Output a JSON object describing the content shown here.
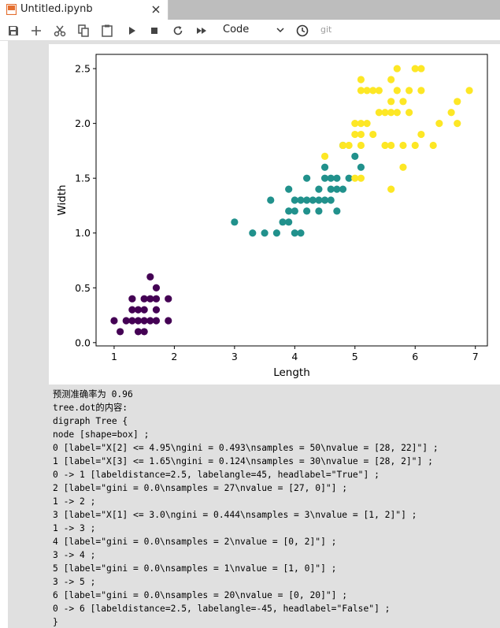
{
  "tab": {
    "title": "Untitled.ipynb",
    "icon": "notebook-icon",
    "close_icon": "close-icon"
  },
  "toolbar": {
    "buttons": [
      "save-icon",
      "add-cell-icon",
      "cut-icon",
      "copy-icon",
      "paste-icon",
      "run-icon",
      "stop-icon",
      "restart-icon",
      "fast-forward-icon"
    ],
    "cell_type": "Code",
    "clock_icon": "clock-icon",
    "git_label": "git"
  },
  "colors": {
    "class0": "#440154",
    "class1": "#21918c",
    "class2": "#fde725",
    "tab_bar": "#bdbdbd",
    "cell_area": "#e0e0e0"
  },
  "chart_data": {
    "type": "scatter",
    "xlabel": "Length",
    "ylabel": "Width",
    "xlim": [
      0.7,
      7.2
    ],
    "ylim": [
      -0.03,
      2.63
    ],
    "xticks": [
      "1",
      "2",
      "3",
      "4",
      "5",
      "6",
      "7"
    ],
    "yticks": [
      "0.0",
      "0.5",
      "1.0",
      "1.5",
      "2.0",
      "2.5"
    ],
    "grid": false,
    "legend": "none",
    "series": [
      {
        "color": "#440154",
        "points": [
          [
            1.0,
            0.2
          ],
          [
            1.1,
            0.1
          ],
          [
            1.2,
            0.2
          ],
          [
            1.3,
            0.2
          ],
          [
            1.3,
            0.3
          ],
          [
            1.3,
            0.4
          ],
          [
            1.4,
            0.1
          ],
          [
            1.4,
            0.2
          ],
          [
            1.4,
            0.3
          ],
          [
            1.5,
            0.1
          ],
          [
            1.5,
            0.2
          ],
          [
            1.5,
            0.3
          ],
          [
            1.5,
            0.4
          ],
          [
            1.6,
            0.2
          ],
          [
            1.6,
            0.4
          ],
          [
            1.6,
            0.6
          ],
          [
            1.7,
            0.2
          ],
          [
            1.7,
            0.3
          ],
          [
            1.7,
            0.4
          ],
          [
            1.7,
            0.5
          ],
          [
            1.9,
            0.2
          ],
          [
            1.9,
            0.4
          ]
        ]
      },
      {
        "color": "#21918c",
        "points": [
          [
            3.0,
            1.1
          ],
          [
            3.3,
            1.0
          ],
          [
            3.5,
            1.0
          ],
          [
            3.6,
            1.3
          ],
          [
            3.7,
            1.0
          ],
          [
            3.8,
            1.1
          ],
          [
            3.9,
            1.1
          ],
          [
            3.9,
            1.2
          ],
          [
            3.9,
            1.4
          ],
          [
            4.0,
            1.0
          ],
          [
            4.0,
            1.2
          ],
          [
            4.0,
            1.3
          ],
          [
            4.1,
            1.0
          ],
          [
            4.1,
            1.3
          ],
          [
            4.2,
            1.2
          ],
          [
            4.2,
            1.3
          ],
          [
            4.2,
            1.5
          ],
          [
            4.3,
            1.3
          ],
          [
            4.4,
            1.2
          ],
          [
            4.4,
            1.3
          ],
          [
            4.4,
            1.4
          ],
          [
            4.5,
            1.3
          ],
          [
            4.5,
            1.5
          ],
          [
            4.5,
            1.6
          ],
          [
            4.6,
            1.3
          ],
          [
            4.6,
            1.4
          ],
          [
            4.6,
            1.5
          ],
          [
            4.7,
            1.2
          ],
          [
            4.7,
            1.4
          ],
          [
            4.7,
            1.5
          ],
          [
            4.8,
            1.4
          ],
          [
            4.8,
            1.8
          ],
          [
            4.9,
            1.5
          ],
          [
            5.0,
            1.7
          ],
          [
            5.1,
            1.6
          ]
        ]
      },
      {
        "color": "#fde725",
        "points": [
          [
            4.5,
            1.7
          ],
          [
            4.8,
            1.8
          ],
          [
            4.9,
            1.8
          ],
          [
            5.0,
            1.5
          ],
          [
            5.0,
            1.9
          ],
          [
            5.0,
            2.0
          ],
          [
            5.1,
            1.5
          ],
          [
            5.1,
            1.8
          ],
          [
            5.1,
            1.9
          ],
          [
            5.1,
            2.0
          ],
          [
            5.1,
            2.3
          ],
          [
            5.1,
            2.4
          ],
          [
            5.2,
            2.0
          ],
          [
            5.2,
            2.3
          ],
          [
            5.3,
            1.9
          ],
          [
            5.3,
            2.3
          ],
          [
            5.4,
            2.1
          ],
          [
            5.4,
            2.3
          ],
          [
            5.5,
            1.8
          ],
          [
            5.5,
            2.1
          ],
          [
            5.6,
            1.4
          ],
          [
            5.6,
            1.8
          ],
          [
            5.6,
            2.1
          ],
          [
            5.6,
            2.2
          ],
          [
            5.6,
            2.4
          ],
          [
            5.7,
            2.1
          ],
          [
            5.7,
            2.3
          ],
          [
            5.7,
            2.5
          ],
          [
            5.8,
            1.6
          ],
          [
            5.8,
            1.8
          ],
          [
            5.8,
            2.2
          ],
          [
            5.9,
            2.1
          ],
          [
            5.9,
            2.3
          ],
          [
            6.0,
            1.8
          ],
          [
            6.0,
            2.5
          ],
          [
            6.1,
            1.9
          ],
          [
            6.1,
            2.3
          ],
          [
            6.1,
            2.5
          ],
          [
            6.3,
            1.8
          ],
          [
            6.4,
            2.0
          ],
          [
            6.6,
            2.1
          ],
          [
            6.7,
            2.0
          ],
          [
            6.7,
            2.2
          ],
          [
            6.9,
            2.3
          ]
        ]
      }
    ]
  },
  "output_lines": [
    "预测准确率为 0.96",
    "tree.dot的内容:",
    "digraph Tree {",
    "node [shape=box] ;",
    "0 [label=\"X[2] <= 4.95\\ngini = 0.493\\nsamples = 50\\nvalue = [28, 22]\"] ;",
    "1 [label=\"X[3] <= 1.65\\ngini = 0.124\\nsamples = 30\\nvalue = [28, 2]\"] ;",
    "0 -> 1 [labeldistance=2.5, labelangle=45, headlabel=\"True\"] ;",
    "2 [label=\"gini = 0.0\\nsamples = 27\\nvalue = [27, 0]\"] ;",
    "1 -> 2 ;",
    "3 [label=\"X[1] <= 3.0\\ngini = 0.444\\nsamples = 3\\nvalue = [1, 2]\"] ;",
    "1 -> 3 ;",
    "4 [label=\"gini = 0.0\\nsamples = 2\\nvalue = [0, 2]\"] ;",
    "3 -> 4 ;",
    "5 [label=\"gini = 0.0\\nsamples = 1\\nvalue = [1, 0]\"] ;",
    "3 -> 5 ;",
    "6 [label=\"gini = 0.0\\nsamples = 20\\nvalue = [0, 20]\"] ;",
    "0 -> 6 [labeldistance=2.5, labelangle=-45, headlabel=\"False\"] ;",
    "}"
  ]
}
